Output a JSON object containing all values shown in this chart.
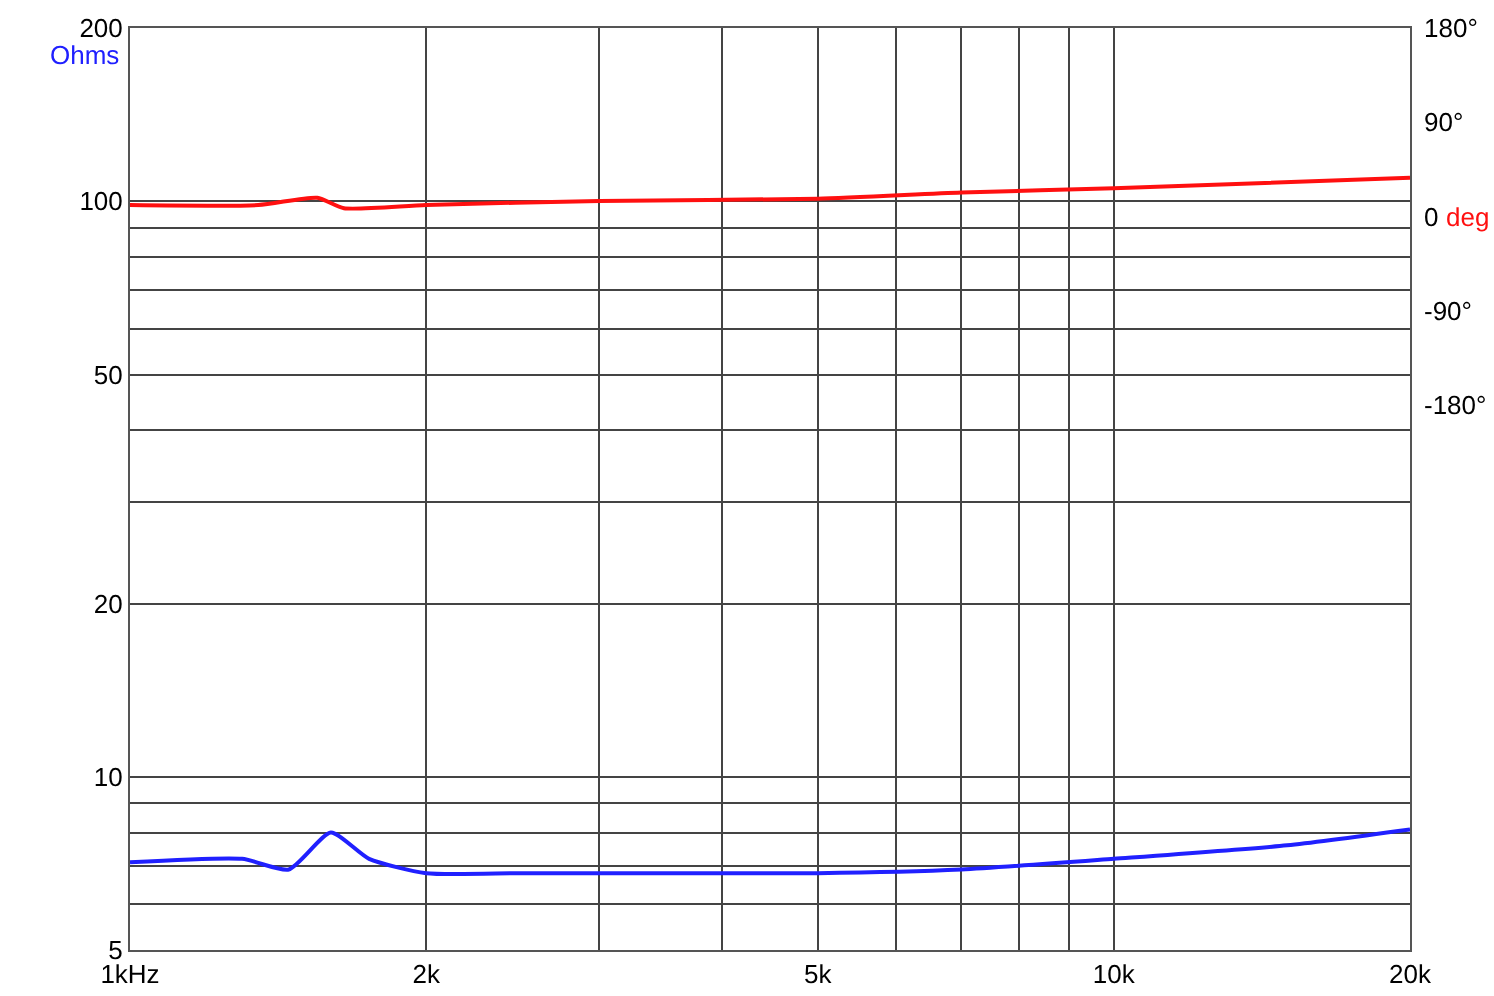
{
  "chart_data": {
    "type": "line",
    "ylabel": "Ohms",
    "y2label": "deg",
    "log": "xy",
    "grid": true,
    "marker": "none",
    "line_style": "solid",
    "xlim": [
      1,
      20
    ],
    "xticks": [
      {
        "value": 1,
        "label": "1kHz"
      },
      {
        "value": 2,
        "label": "2k"
      },
      {
        "value": 3,
        "label": null
      },
      {
        "value": 4,
        "label": null
      },
      {
        "value": 5,
        "label": "5k"
      },
      {
        "value": 6,
        "label": null
      },
      {
        "value": 7,
        "label": null
      },
      {
        "value": 8,
        "label": null
      },
      {
        "value": 9,
        "label": null
      },
      {
        "value": 10,
        "label": "10k"
      },
      {
        "value": 20,
        "label": "20k"
      }
    ],
    "ylim": [
      5,
      200
    ],
    "yticks": [
      5,
      {
        "value": 6,
        "label": null
      },
      {
        "value": 7,
        "label": null
      },
      {
        "value": 8,
        "label": null
      },
      {
        "value": 9,
        "label": null
      },
      10,
      20,
      {
        "value": 30,
        "label": null
      },
      {
        "value": 40,
        "label": null
      },
      50,
      {
        "value": 60,
        "label": null
      },
      {
        "value": 70,
        "label": null
      },
      {
        "value": 80,
        "label": null
      },
      {
        "value": 90,
        "label": null
      },
      100,
      200
    ],
    "y2lim": [
      -700,
      180
    ],
    "y2ticks": [
      {
        "value": 180,
        "label": "180°"
      },
      {
        "value": 90,
        "label": "90°"
      },
      0,
      {
        "value": -90,
        "label": "-90°"
      },
      {
        "value": -180,
        "label": "-180°"
      }
    ],
    "series": [
      {
        "color": "#2020ff",
        "x": [
          1,
          1.3,
          1.45,
          1.6,
          1.75,
          2,
          2.5,
          3.5,
          5,
          7,
          10,
          15,
          20
        ],
        "values": [
          7.1,
          7.2,
          6.9,
          8.0,
          7.2,
          6.8,
          6.8,
          6.8,
          6.8,
          6.9,
          7.2,
          7.6,
          8.1
        ]
      },
      {
        "color": "#ff1010",
        "axis": "y2",
        "x": [
          1,
          1.35,
          1.55,
          1.65,
          2,
          3,
          5,
          7,
          10,
          20
        ],
        "values": [
          11,
          11,
          18,
          8,
          11,
          15,
          17,
          23,
          27,
          37
        ]
      }
    ]
  }
}
